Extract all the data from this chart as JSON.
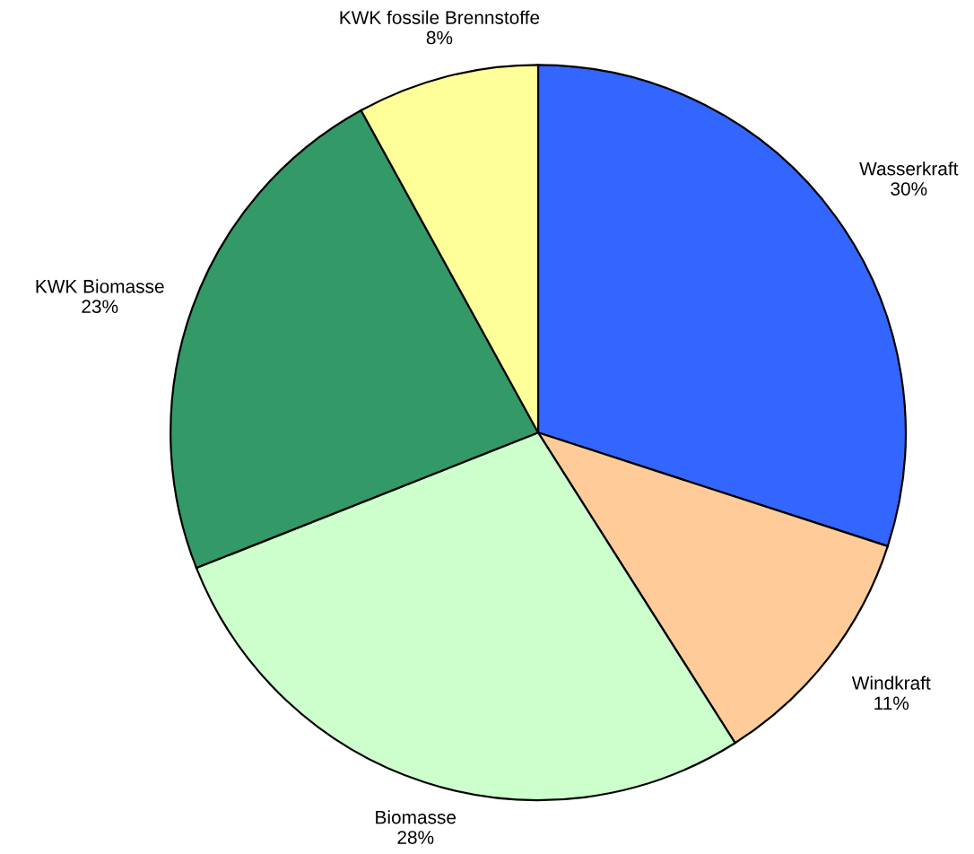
{
  "chart_data": {
    "type": "pie",
    "categories": [
      "Wasserkraft",
      "Windkraft",
      "Biomasse",
      "KWK Biomasse",
      "KWK fossile Brennstoffe"
    ],
    "values": [
      30,
      11,
      28,
      23,
      8
    ],
    "value_labels": [
      "30%",
      "11%",
      "28%",
      "23%",
      "8%"
    ],
    "colors": [
      "#3366ff",
      "#ffcc99",
      "#ccffcc",
      "#339966",
      "#ffff99"
    ]
  }
}
